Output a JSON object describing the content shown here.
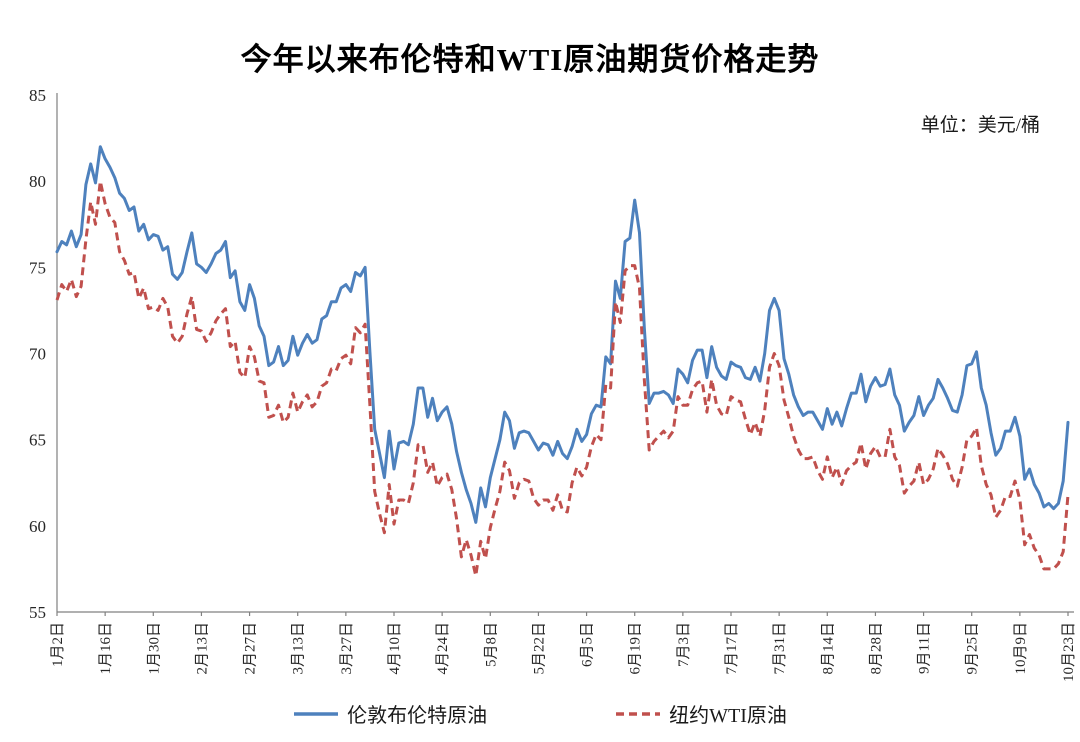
{
  "title": "今年以来布伦特和WTI原油期货价格走势",
  "unit_label": "单位：美元/桶",
  "legend": {
    "position": "bottom",
    "items": [
      {
        "label": "伦敦布伦特原油",
        "color": "#4E81BD",
        "line_style": "solid"
      },
      {
        "label": "纽约WTI原油",
        "color": "#C0504D",
        "line_style": "dashed"
      }
    ]
  },
  "axis": {
    "line_color": "#808080",
    "tick_label_color": "#262626"
  },
  "chart_data": {
    "type": "line",
    "title": "今年以来布伦特和WTI原油期货价格走势",
    "xlabel": "",
    "ylabel": "美元/桶",
    "ylim": [
      55,
      85
    ],
    "y_ticks": [
      85,
      80,
      75,
      70,
      65,
      60,
      55
    ],
    "grid": false,
    "legend_position": "bottom",
    "x_tick_every": 10,
    "x_tick_labels": [
      "1月2日",
      "1月16日",
      "1月30日",
      "2月13日",
      "2月27日",
      "3月13日",
      "3月27日",
      "4月10日",
      "4月24日",
      "5月8日",
      "5月22日",
      "6月5日",
      "6月19日",
      "7月3日",
      "7月17日",
      "7月31日",
      "8月14日",
      "8月28日",
      "9月11日",
      "9月25日",
      "10月9日",
      "10月23日"
    ],
    "series": [
      {
        "name": "伦敦布伦特原油",
        "color": "#4E81BD",
        "dash": false,
        "values": [
          75.9,
          76.5,
          76.3,
          77.1,
          76.2,
          76.9,
          79.8,
          81.0,
          79.9,
          82.0,
          81.3,
          80.8,
          80.2,
          79.3,
          79.0,
          78.3,
          78.5,
          77.1,
          77.5,
          76.6,
          76.9,
          76.8,
          76.0,
          76.2,
          74.6,
          74.3,
          74.7,
          75.9,
          77.0,
          75.2,
          75.0,
          74.7,
          75.2,
          75.8,
          76.0,
          76.5,
          74.4,
          74.8,
          73.0,
          72.5,
          74.0,
          73.2,
          71.6,
          71.0,
          69.3,
          69.5,
          70.4,
          69.3,
          69.6,
          71.0,
          69.9,
          70.6,
          71.1,
          70.6,
          70.8,
          72.0,
          72.2,
          73.0,
          73.0,
          73.8,
          74.0,
          73.6,
          74.7,
          74.5,
          75.0,
          70.1,
          65.6,
          64.2,
          62.8,
          65.5,
          63.3,
          64.8,
          64.9,
          64.7,
          65.9,
          68.0,
          68.0,
          66.3,
          67.4,
          66.1,
          66.6,
          66.9,
          65.9,
          64.3,
          63.1,
          62.1,
          61.3,
          60.2,
          62.2,
          61.1,
          62.8,
          63.9,
          65.0,
          66.6,
          66.1,
          64.5,
          65.4,
          65.5,
          65.4,
          64.9,
          64.4,
          64.8,
          64.7,
          64.1,
          64.9,
          64.2,
          63.9,
          64.6,
          65.6,
          64.9,
          65.3,
          66.5,
          67.0,
          66.9,
          69.8,
          69.4,
          74.2,
          73.2,
          76.5,
          76.7,
          78.9,
          77.0,
          71.5,
          67.1,
          67.7,
          67.7,
          67.8,
          67.6,
          67.1,
          69.1,
          68.8,
          68.3,
          69.6,
          70.2,
          70.2,
          68.6,
          70.4,
          69.2,
          68.7,
          68.5,
          69.5,
          69.3,
          69.2,
          68.6,
          68.5,
          69.2,
          68.4,
          70.0,
          72.5,
          73.2,
          72.5,
          69.7,
          68.8,
          67.6,
          66.9,
          66.4,
          66.6,
          66.6,
          66.1,
          65.6,
          66.8,
          65.9,
          66.6,
          65.8,
          66.8,
          67.7,
          67.7,
          68.8,
          67.2,
          68.1,
          68.6,
          68.1,
          68.2,
          69.1,
          67.6,
          67.0,
          65.5,
          66.0,
          66.4,
          67.5,
          66.4,
          67.0,
          67.4,
          68.5,
          68.0,
          67.4,
          66.7,
          66.6,
          67.6,
          69.3,
          69.4,
          70.1,
          68.0,
          67.0,
          65.4,
          64.1,
          64.5,
          65.5,
          65.5,
          66.3,
          65.2,
          62.7,
          63.3,
          62.4,
          61.9,
          61.1,
          61.3,
          61.0,
          61.3,
          62.6,
          66.0
        ]
      },
      {
        "name": "纽约WTI原油",
        "color": "#C0504D",
        "dash": true,
        "values": [
          73.1,
          74.0,
          73.6,
          74.3,
          73.3,
          73.9,
          76.6,
          78.8,
          77.5,
          80.0,
          78.7,
          77.9,
          77.6,
          75.9,
          75.4,
          74.6,
          74.7,
          73.2,
          73.8,
          72.6,
          72.7,
          72.5,
          73.2,
          72.7,
          71.0,
          70.6,
          71.0,
          72.3,
          73.3,
          71.4,
          71.3,
          70.7,
          71.2,
          71.9,
          72.3,
          72.6,
          70.4,
          70.7,
          68.9,
          68.6,
          70.4,
          69.8,
          68.4,
          68.3,
          66.3,
          66.4,
          67.0,
          66.0,
          66.3,
          67.7,
          66.6,
          67.2,
          67.6,
          66.9,
          67.2,
          68.1,
          68.3,
          69.1,
          69.0,
          69.7,
          69.9,
          69.4,
          71.5,
          71.2,
          71.7,
          67.0,
          62.0,
          60.7,
          59.6,
          62.4,
          60.1,
          61.5,
          61.5,
          61.3,
          62.5,
          64.7,
          64.7,
          63.1,
          63.7,
          62.3,
          62.8,
          63.0,
          62.1,
          60.4,
          58.2,
          59.2,
          58.3,
          57.1,
          59.1,
          58.1,
          59.9,
          61.0,
          62.0,
          63.7,
          63.2,
          61.6,
          62.5,
          62.7,
          62.6,
          61.6,
          61.2,
          61.5,
          61.5,
          60.9,
          61.8,
          60.9,
          60.8,
          62.5,
          63.4,
          62.9,
          63.4,
          64.6,
          65.3,
          65.0,
          68.2,
          68.0,
          73.0,
          71.8,
          74.8,
          75.1,
          75.1,
          73.8,
          68.5,
          64.4,
          64.9,
          65.2,
          65.5,
          65.1,
          65.5,
          67.5,
          67.0,
          67.0,
          67.9,
          68.3,
          68.4,
          66.6,
          68.5,
          67.0,
          66.5,
          66.4,
          67.5,
          67.3,
          67.2,
          66.2,
          65.3,
          66.0,
          65.2,
          66.7,
          69.2,
          70.0,
          69.3,
          67.3,
          66.3,
          65.2,
          64.4,
          63.9,
          63.9,
          64.0,
          63.2,
          62.7,
          64.0,
          62.8,
          63.4,
          62.4,
          63.2,
          63.5,
          63.7,
          64.8,
          63.3,
          64.2,
          64.6,
          64.0,
          64.0,
          65.6,
          64.0,
          63.5,
          61.9,
          62.3,
          62.6,
          63.7,
          62.4,
          62.7,
          63.3,
          64.5,
          64.1,
          63.6,
          62.7,
          62.3,
          63.4,
          65.0,
          65.2,
          65.7,
          63.5,
          62.4,
          61.8,
          60.5,
          60.9,
          61.7,
          61.7,
          62.6,
          61.5,
          58.9,
          59.5,
          58.7,
          58.3,
          57.5,
          57.5,
          57.5,
          57.8,
          58.5,
          61.8
        ]
      }
    ]
  }
}
